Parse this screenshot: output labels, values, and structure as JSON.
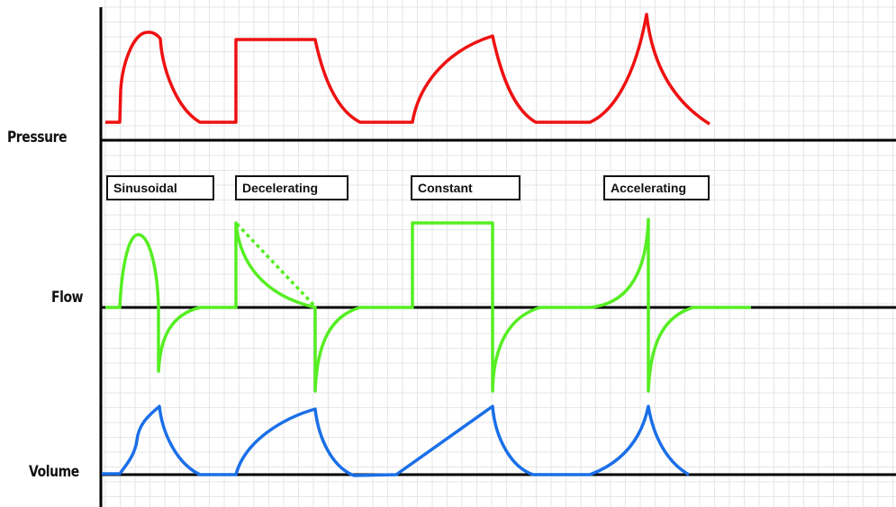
{
  "labels": {
    "pressure": "Pressure",
    "flow": "Flow",
    "volume": "Volume"
  },
  "patterns": [
    "Sinusoidal",
    "Decelerating",
    "Constant",
    "Accelerating"
  ],
  "colors": {
    "pressure": "#ee1111",
    "flow": "#55ee22",
    "volume": "#1a6fe8",
    "axis": "#000000",
    "grid": "#e6e6e6"
  }
}
